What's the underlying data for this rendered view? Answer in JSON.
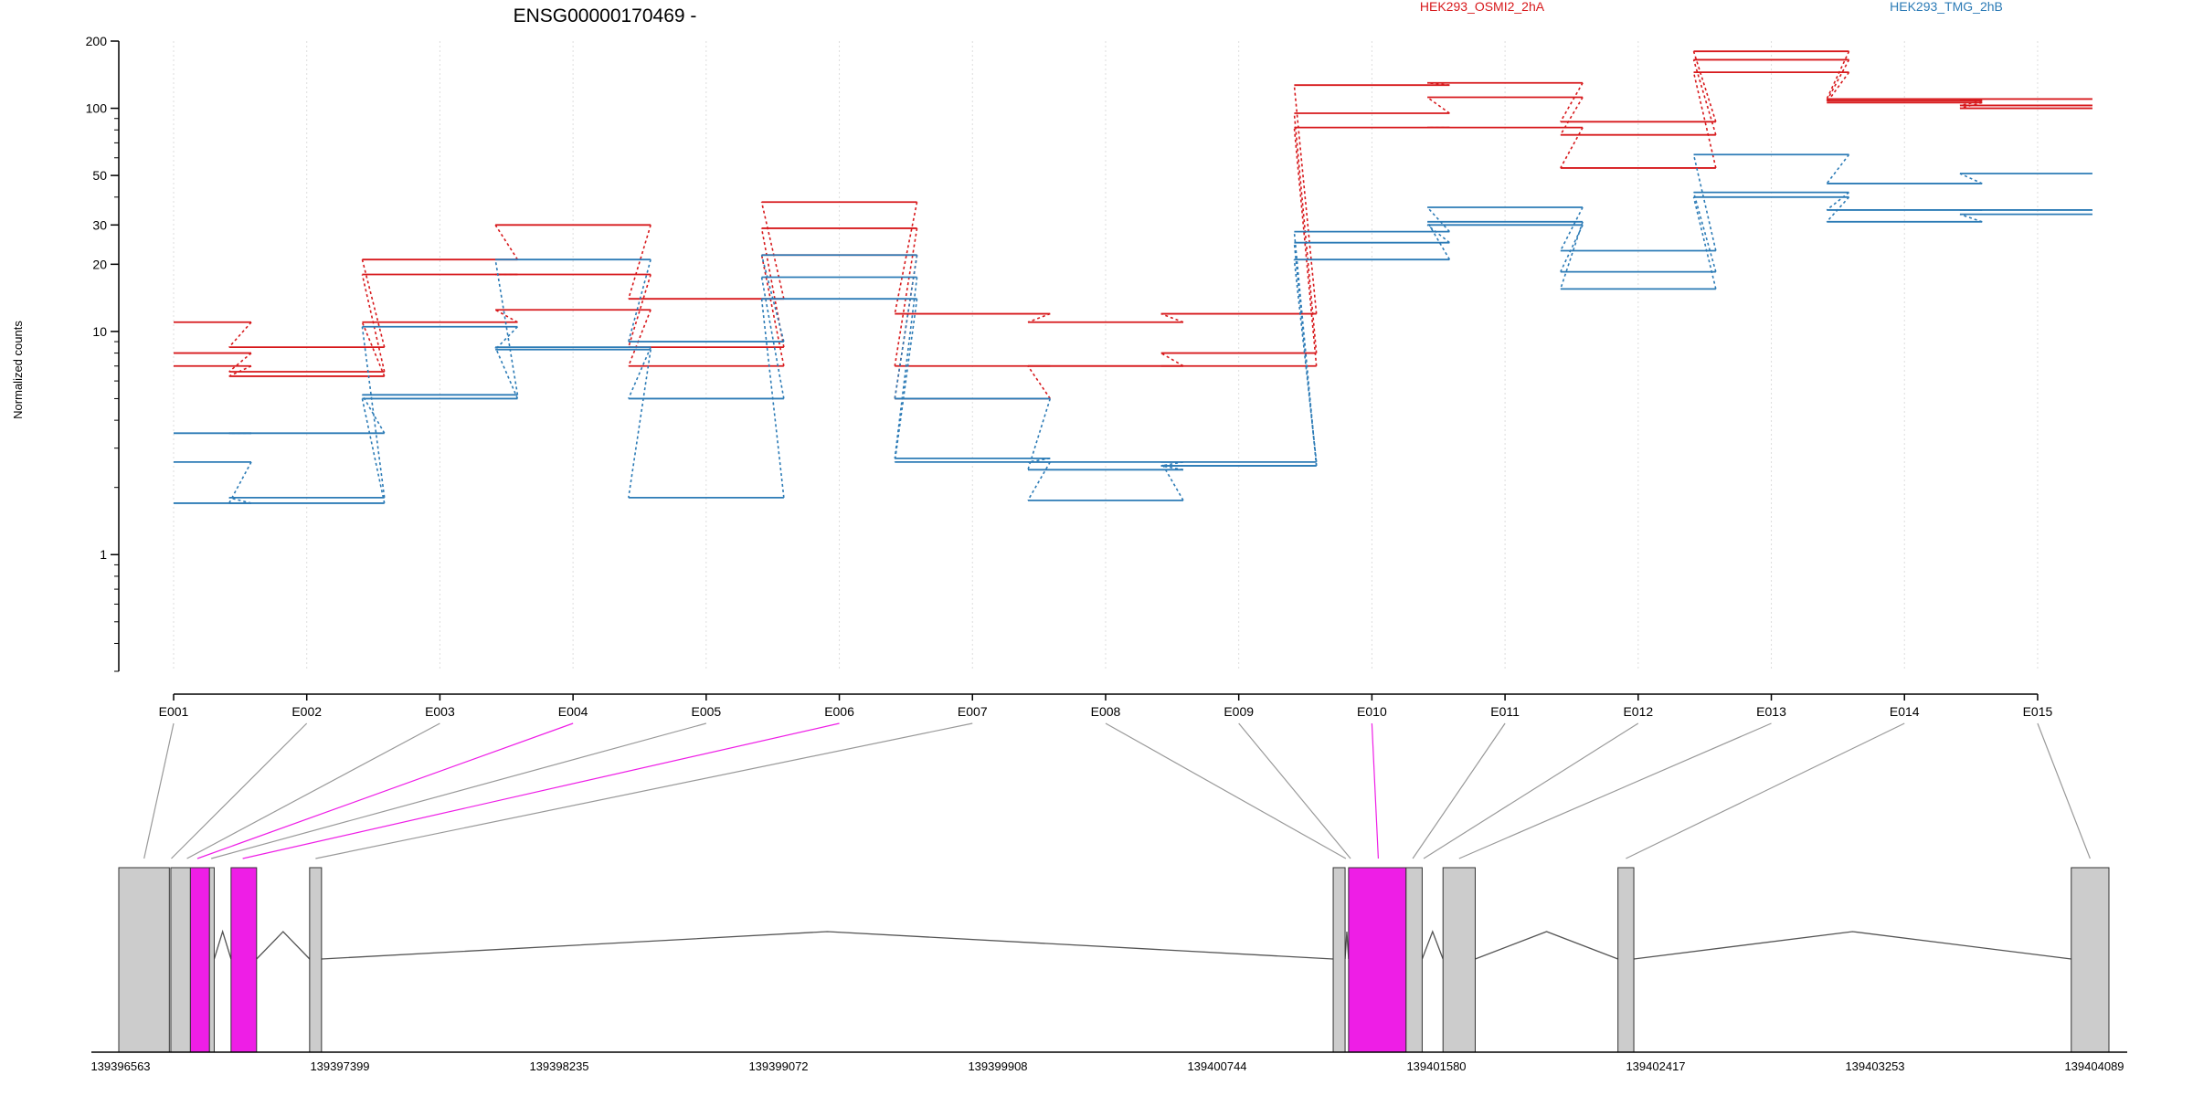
{
  "chart_data": {
    "type": "line",
    "title": "ENSG00000170469 -",
    "ylabel": "Normalized counts",
    "xlabel": "",
    "y_scale": "log",
    "ylim": [
      0.3,
      200
    ],
    "y_ticks": [
      1,
      10,
      20,
      30,
      50,
      100,
      200
    ],
    "grid": "vertical dotted at each exon",
    "categories": [
      "E001",
      "E002",
      "E003",
      "E004",
      "E005",
      "E006",
      "E007",
      "E008",
      "E009",
      "E010",
      "E011",
      "E012",
      "E013",
      "E014",
      "E015"
    ],
    "legend": [
      {
        "name": "HEK293_OSMI2_2hA",
        "color": "#d7191c"
      },
      {
        "name": "HEK293_TMG_2hB",
        "color": "#2c7bb6"
      }
    ],
    "series": [
      {
        "group": "HEK293_OSMI2_2hA",
        "values": [
          11,
          8.5,
          21,
          30,
          14,
          38,
          12,
          11,
          12,
          127,
          130,
          87,
          180,
          110,
          110
        ]
      },
      {
        "group": "HEK293_OSMI2_2hA",
        "values": [
          8,
          6.6,
          18,
          18,
          8.5,
          29,
          7,
          7,
          8,
          95,
          112,
          76,
          165,
          108,
          103
        ]
      },
      {
        "group": "HEK293_OSMI2_2hA",
        "values": [
          7,
          6.3,
          11,
          12.5,
          7,
          22,
          5,
          7,
          7,
          82,
          82,
          54,
          145,
          106,
          100
        ]
      },
      {
        "group": "HEK293_TMG_2hB",
        "values": [
          3.5,
          3.5,
          5.2,
          21,
          9,
          22,
          5,
          2.4,
          2.5,
          28,
          36,
          23,
          62,
          46,
          51
        ]
      },
      {
        "group": "HEK293_TMG_2hB",
        "values": [
          2.6,
          1.7,
          5,
          8.5,
          5,
          17.5,
          2.7,
          2.6,
          2.5,
          25,
          30,
          18.5,
          42,
          35,
          35
        ]
      },
      {
        "group": "HEK293_TMG_2hB",
        "values": [
          1.7,
          1.8,
          10.5,
          8.3,
          1.8,
          14,
          2.6,
          1.75,
          2.6,
          21,
          31,
          15.5,
          40,
          31,
          33.5
        ]
      }
    ],
    "gene_model": {
      "region_start": 139396563,
      "region_end": 139404593,
      "coordinate_labels": [
        "139396563",
        "139397399",
        "139398235",
        "139399072",
        "139399908",
        "139400744",
        "139401580",
        "139402417",
        "139403253",
        "139404089"
      ],
      "highlight_color": "#ee1ee6",
      "exon_color": "#cccccc",
      "exons": [
        {
          "start": 139396563,
          "end": 139396767,
          "highlight": false
        },
        {
          "start": 139396773,
          "end": 139396852,
          "highlight": false
        },
        {
          "start": 139396852,
          "end": 139396929,
          "highlight": true
        },
        {
          "start": 139396929,
          "end": 139396948,
          "highlight": false
        },
        {
          "start": 139397016,
          "end": 139397119,
          "highlight": true
        },
        {
          "start": 139397333,
          "end": 139397381,
          "highlight": false
        },
        {
          "start": 139401463,
          "end": 139401511,
          "highlight": false
        },
        {
          "start": 139401525,
          "end": 139401757,
          "highlight": true
        },
        {
          "start": 139401757,
          "end": 139401822,
          "highlight": false
        },
        {
          "start": 139401906,
          "end": 139402036,
          "highlight": false
        },
        {
          "start": 139402612,
          "end": 139402676,
          "highlight": false
        },
        {
          "start": 139404441,
          "end": 139404593,
          "highlight": false
        }
      ],
      "mappings": [
        {
          "exon": "E001",
          "coord": 139396665,
          "highlight": false
        },
        {
          "exon": "E002",
          "coord": 139396775,
          "highlight": false
        },
        {
          "exon": "E003",
          "coord": 139396838,
          "highlight": false
        },
        {
          "exon": "E004",
          "coord": 139396880,
          "highlight": true
        },
        {
          "exon": "E005",
          "coord": 139396936,
          "highlight": false
        },
        {
          "exon": "E006",
          "coord": 139397063,
          "highlight": true
        },
        {
          "exon": "E007",
          "coord": 139397357,
          "highlight": false
        },
        {
          "exon": "E008",
          "coord": 139401514,
          "highlight": false
        },
        {
          "exon": "E009",
          "coord": 139401533,
          "highlight": false
        },
        {
          "exon": "E010",
          "coord": 139401645,
          "highlight": true
        },
        {
          "exon": "E011",
          "coord": 139401784,
          "highlight": false
        },
        {
          "exon": "E012",
          "coord": 139401828,
          "highlight": false
        },
        {
          "exon": "E013",
          "coord": 139401971,
          "highlight": false
        },
        {
          "exon": "E014",
          "coord": 139402644,
          "highlight": false
        },
        {
          "exon": "E015",
          "coord": 139404517,
          "highlight": false
        }
      ]
    }
  }
}
